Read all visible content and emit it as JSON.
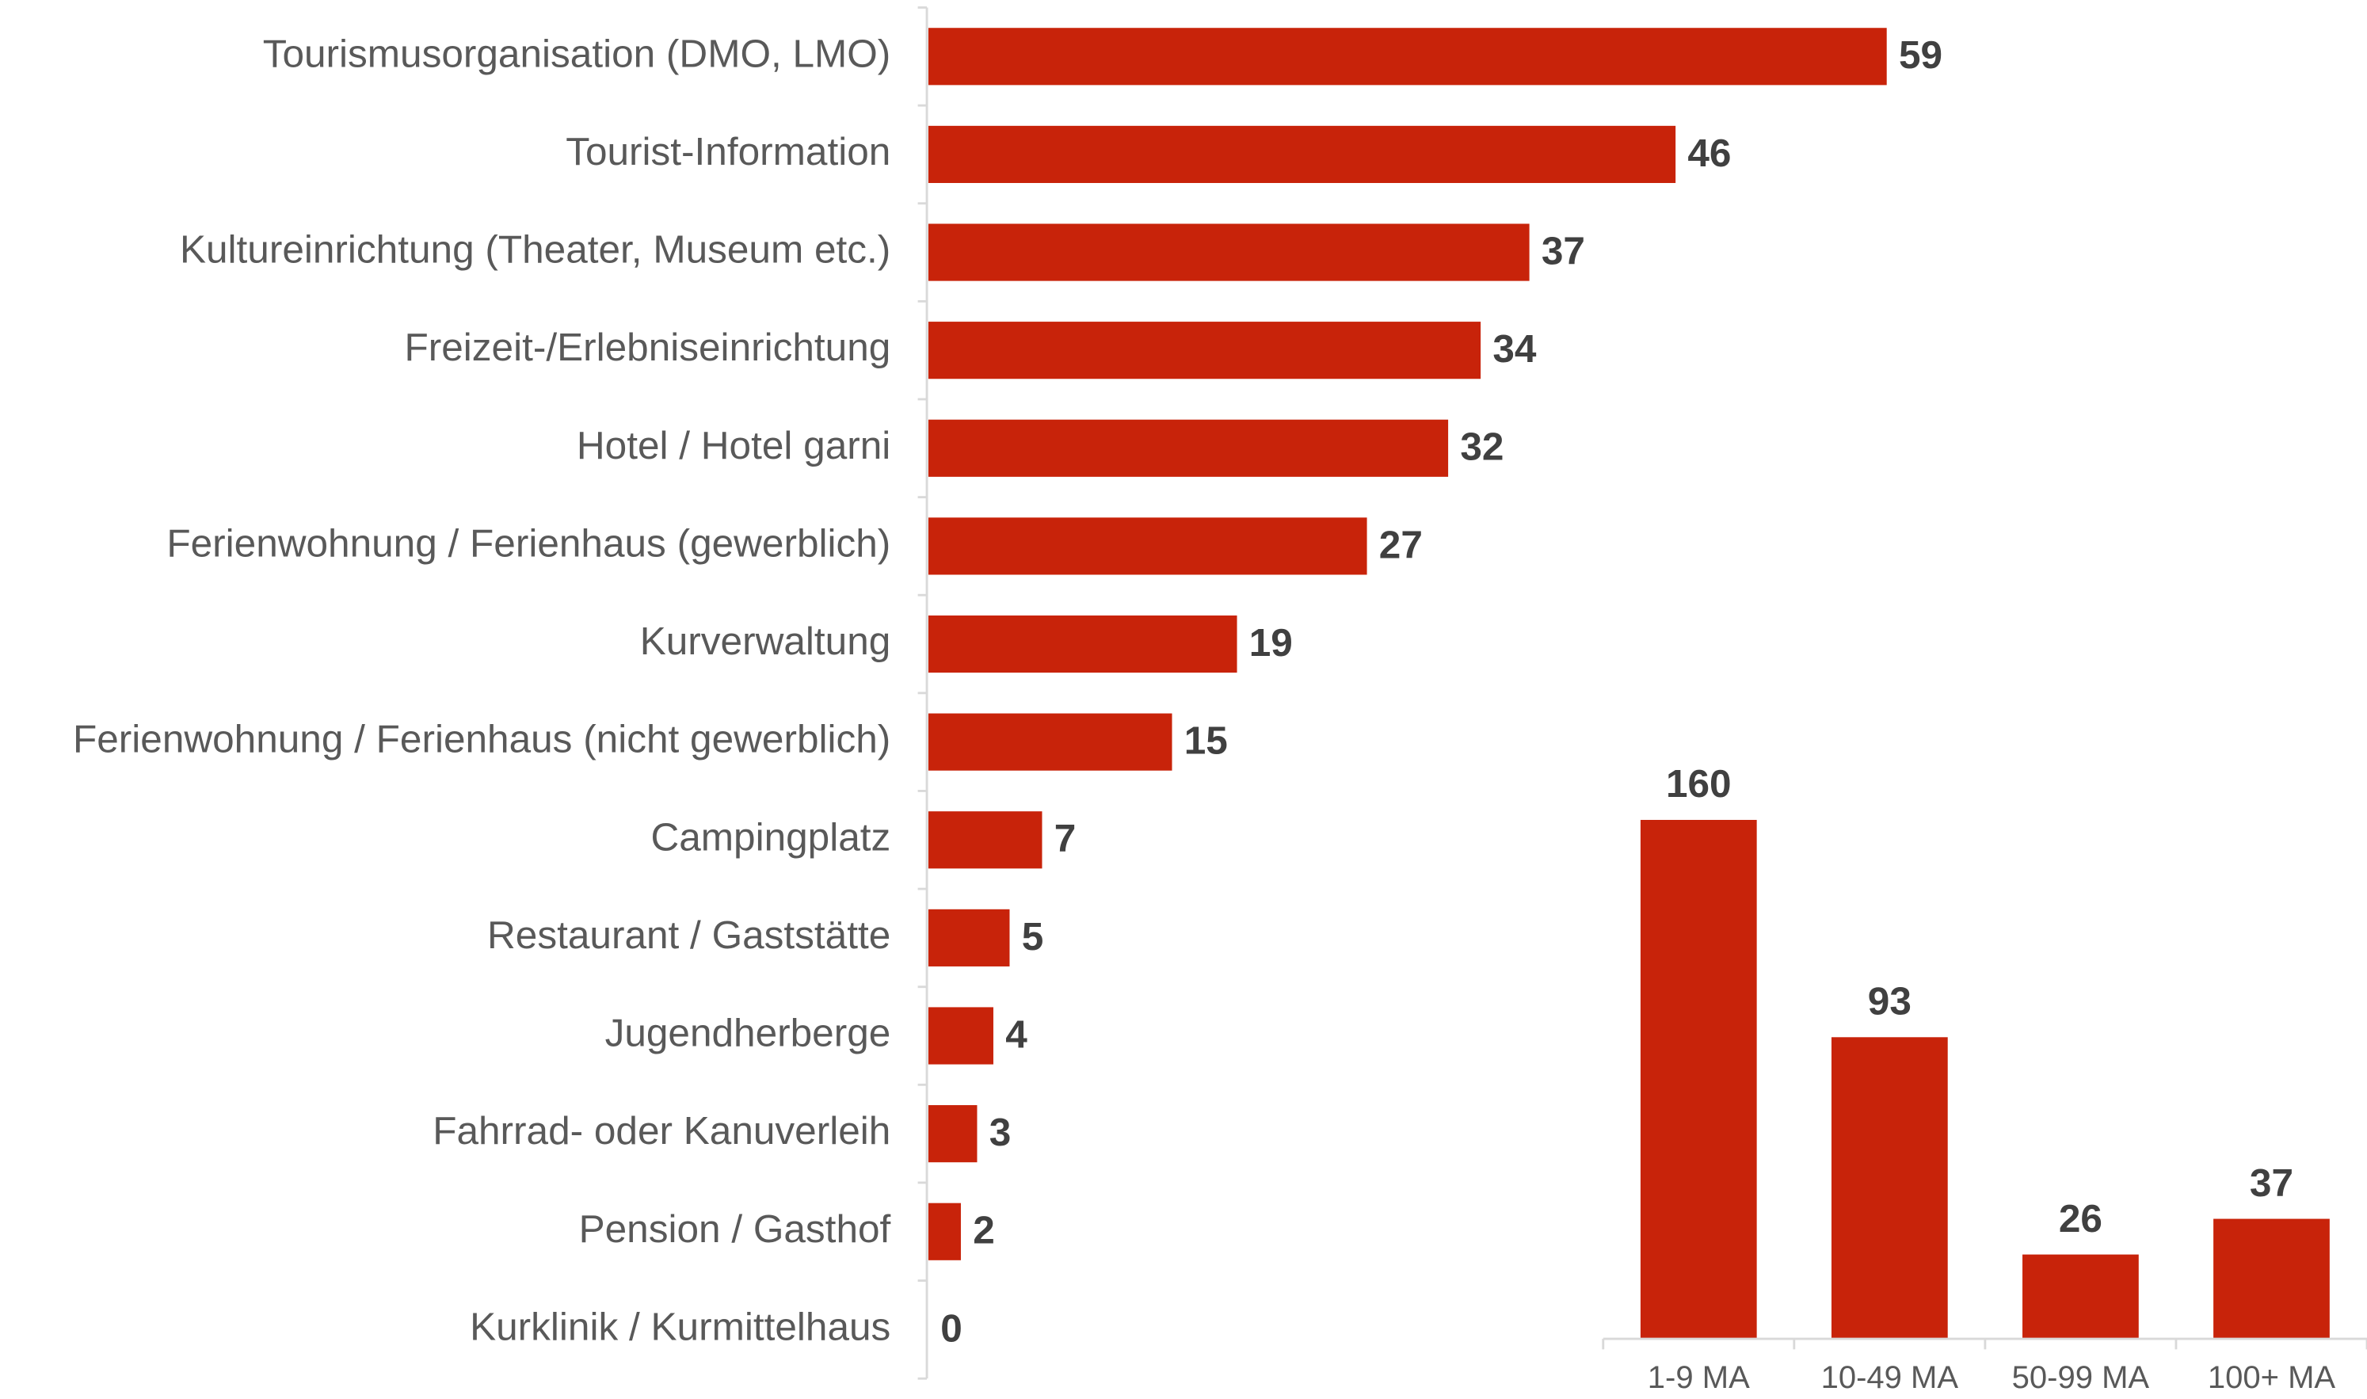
{
  "chart_data": [
    {
      "type": "hbar",
      "categories": [
        "Tourismusorganisation (DMO, LMO)",
        "Tourist-Information",
        "Kultureinrichtung (Theater, Museum etc.)",
        "Freizeit-/Erlebniseinrichtung",
        "Hotel / Hotel garni",
        "Ferienwohnung / Ferienhaus (gewerblich)",
        "Kurverwaltung",
        "Ferienwohnung / Ferienhaus (nicht gewerblich)",
        "Campingplatz",
        "Restaurant / Gaststätte",
        "Jugendherberge",
        "Fahrrad- oder Kanuverleih",
        "Pension / Gasthof",
        "Kurklinik / Kurmittelhaus"
      ],
      "values": [
        59,
        46,
        37,
        34,
        32,
        27,
        19,
        15,
        7,
        5,
        4,
        3,
        2,
        0
      ],
      "color": "#c8230a",
      "xlim": [
        0,
        65
      ]
    },
    {
      "type": "bar",
      "categories": [
        "1-9 MA",
        "10-49 MA",
        "50-99 MA",
        "100+ MA"
      ],
      "values": [
        160,
        93,
        26,
        37
      ],
      "color": "#c8230a",
      "ylim": [
        0,
        180
      ]
    }
  ]
}
